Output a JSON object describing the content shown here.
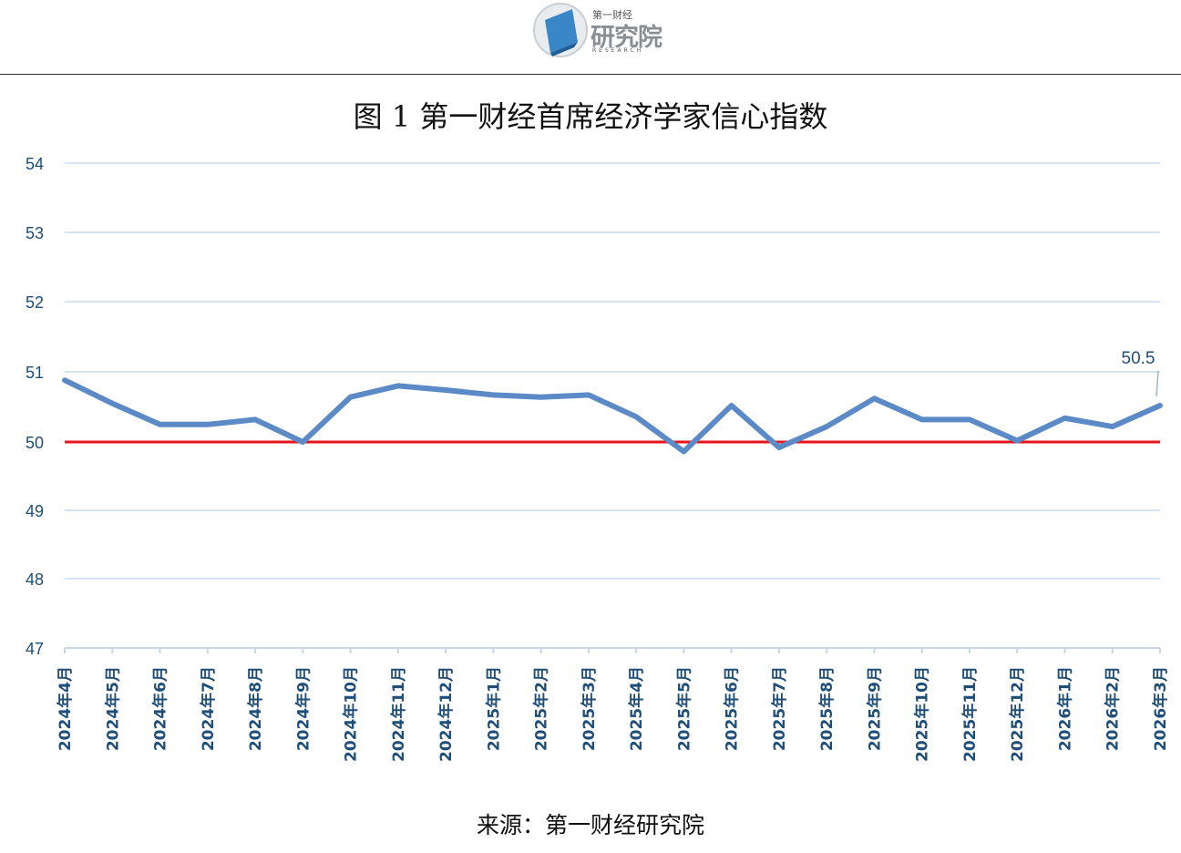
{
  "header": {
    "logo_small": "第一财经",
    "logo_main": "研究院",
    "logo_sub": "RESEARCH"
  },
  "title": "图 1  第一财经首席经济学家信心指数",
  "source": "来源：第一财经研究院",
  "colors": {
    "line": "#5b8ac6",
    "reference": "#e8141c",
    "grid": "#d6e2ef",
    "axis_text": "#1f4e79"
  },
  "chart_data": {
    "type": "line",
    "title": "图 1  第一财经首席经济学家信心指数",
    "xlabel": "",
    "ylabel": "",
    "ylim": [
      47,
      54
    ],
    "yticks": [
      "47",
      "48",
      "49",
      "50",
      "51",
      "52",
      "53",
      "54"
    ],
    "grid": true,
    "reference_line": 50,
    "categories": [
      "2024年4月",
      "2024年5月",
      "2024年6月",
      "2024年7月",
      "2024年8月",
      "2024年9月",
      "2024年10月",
      "2024年11月",
      "2024年12月",
      "2025年1月",
      "2025年2月",
      "2025年3月",
      "2025年4月",
      "2025年5月",
      "2025年6月",
      "2025年7月",
      "2025年8月",
      "2025年9月",
      "2025年10月",
      "2025年11月",
      "2025年12月",
      "2026年1月",
      "2026年2月",
      "2026年3月"
    ],
    "series": [
      {
        "values": [
          50.88,
          50.55,
          50.25,
          50.25,
          50.32,
          50.0,
          50.64,
          50.8,
          50.74,
          50.67,
          50.64,
          50.67,
          50.36,
          49.86,
          50.52,
          49.92,
          50.22,
          50.62,
          50.32,
          50.32,
          50.02,
          50.34,
          50.22,
          50.52
        ]
      }
    ],
    "data_labels": [
      {
        "index": 23,
        "text": "50.5"
      }
    ]
  }
}
